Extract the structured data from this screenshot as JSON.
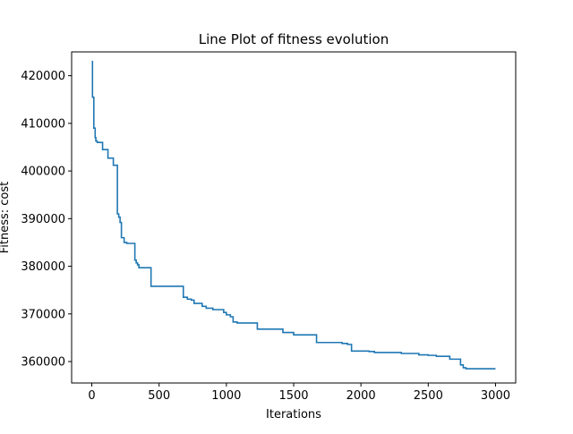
{
  "chart_data": {
    "type": "line",
    "title": "Line Plot of fitness evolution",
    "xlabel": "Iterations",
    "ylabel": "Fitness: cost",
    "xlim": [
      -150,
      3150
    ],
    "ylim": [
      355500,
      425000
    ],
    "grid": false,
    "legend": "none",
    "x_ticks": [
      0,
      500,
      1000,
      1500,
      2000,
      2500,
      3000
    ],
    "x_tick_labels": [
      "0",
      "500",
      "1000",
      "1500",
      "2000",
      "2500",
      "3000"
    ],
    "y_ticks": [
      360000,
      370000,
      380000,
      390000,
      400000,
      410000,
      420000
    ],
    "y_tick_labels": [
      "360000",
      "370000",
      "380000",
      "390000",
      "400000",
      "410000",
      "420000"
    ],
    "series": [
      {
        "color": "#1f77b4",
        "step": "post",
        "x": [
          0,
          5,
          15,
          25,
          30,
          40,
          80,
          120,
          160,
          190,
          200,
          210,
          220,
          240,
          260,
          320,
          330,
          340,
          350,
          440,
          680,
          710,
          740,
          760,
          820,
          850,
          900,
          980,
          1000,
          1030,
          1050,
          1080,
          1230,
          1420,
          1500,
          1670,
          1800,
          1860,
          1900,
          1930,
          1960,
          2060,
          2100,
          2250,
          2300,
          2430,
          2500,
          2560,
          2660,
          2740,
          2760,
          2780,
          3000
        ],
        "y": [
          423000,
          415500,
          409000,
          407000,
          406300,
          406000,
          404500,
          402700,
          401200,
          391000,
          390300,
          389200,
          386000,
          385000,
          384800,
          381300,
          380700,
          380300,
          379700,
          375800,
          373500,
          373100,
          372900,
          372200,
          371600,
          371200,
          370900,
          370300,
          369800,
          369400,
          368300,
          368100,
          366800,
          366100,
          365600,
          364000,
          364000,
          363800,
          363600,
          362200,
          362200,
          362100,
          361900,
          361900,
          361700,
          361400,
          361300,
          361100,
          360500,
          359300,
          358700,
          358500,
          358500
        ]
      }
    ]
  }
}
